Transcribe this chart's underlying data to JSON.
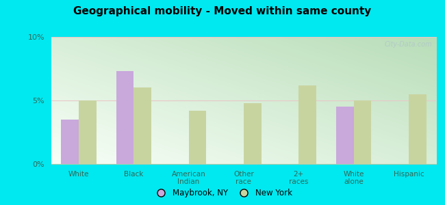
{
  "title": "Geographical mobility - Moved within same county",
  "categories": [
    "White",
    "Black",
    "American\nIndian",
    "Other\nrace",
    "2+\nraces",
    "White\nalone",
    "Hispanic"
  ],
  "maybrook_values": [
    3.5,
    7.3,
    0,
    0,
    0,
    4.5,
    0
  ],
  "newyork_values": [
    5.0,
    6.0,
    4.2,
    4.8,
    6.2,
    5.0,
    5.5
  ],
  "maybrook_color": "#c9a8dc",
  "newyork_color": "#c8d4a0",
  "ylim": [
    0,
    10
  ],
  "yticks": [
    0,
    5,
    10
  ],
  "ytick_labels": [
    "0%",
    "5%",
    "10%"
  ],
  "outer_bg": "#00e8f0",
  "legend_maybrook": "Maybrook, NY",
  "legend_newyork": "New York",
  "watermark": "City-Data.com"
}
